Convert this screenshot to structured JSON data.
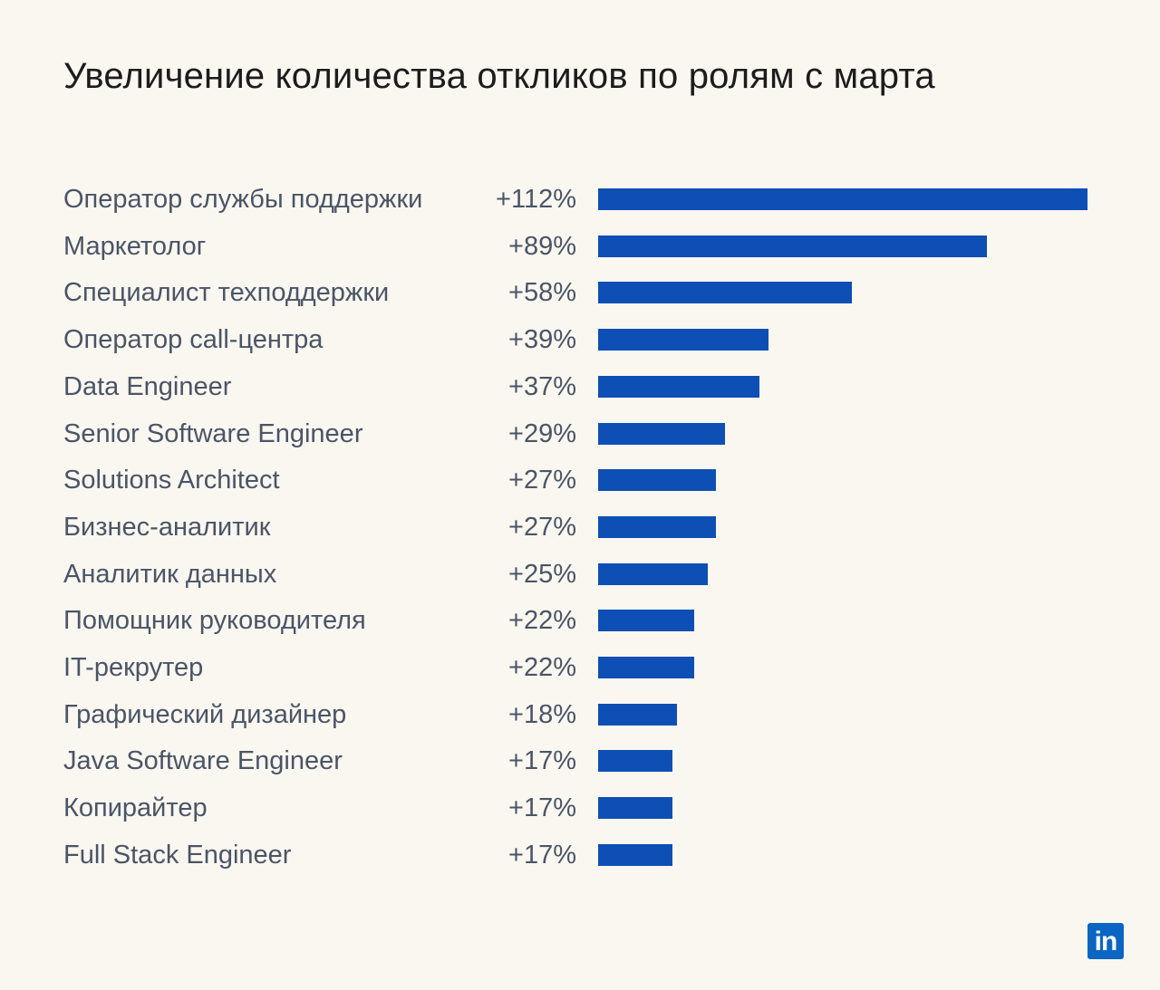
{
  "chart_data": {
    "type": "bar",
    "orientation": "horizontal",
    "title": "Увеличение количества откликов по ролям с марта",
    "categories": [
      "Оператор службы поддержки",
      "Маркетолог",
      "Специалист техподдержки",
      "Оператор call-центра",
      "Data Engineer",
      "Senior Software Engineer",
      "Solutions Architect",
      "Бизнес-аналитик",
      "Аналитик данных",
      "Помощник руководителя",
      "IT-рекрутер",
      "Графический дизайнер",
      "Java Software Engineer",
      "Копирайтер",
      "Full Stack Engineer"
    ],
    "values": [
      112,
      89,
      58,
      39,
      37,
      29,
      27,
      27,
      25,
      22,
      22,
      18,
      17,
      17,
      17
    ],
    "value_labels": [
      "+112%",
      "+89%",
      "+58%",
      "+39%",
      "+37%",
      "+29%",
      "+27%",
      "+27%",
      "+25%",
      "+22%",
      "+22%",
      "+18%",
      "+17%",
      "+17%",
      "+17%"
    ],
    "xlim": [
      0,
      112
    ],
    "grid": false,
    "legend": "none",
    "colors": {
      "bar": "#0e4fb5",
      "label": "#4a5566",
      "title": "#1c1c1c",
      "background": "#faf7f1"
    }
  },
  "logo": {
    "text": "in",
    "icon": "linkedin-logo",
    "color": "#0a66c2"
  }
}
